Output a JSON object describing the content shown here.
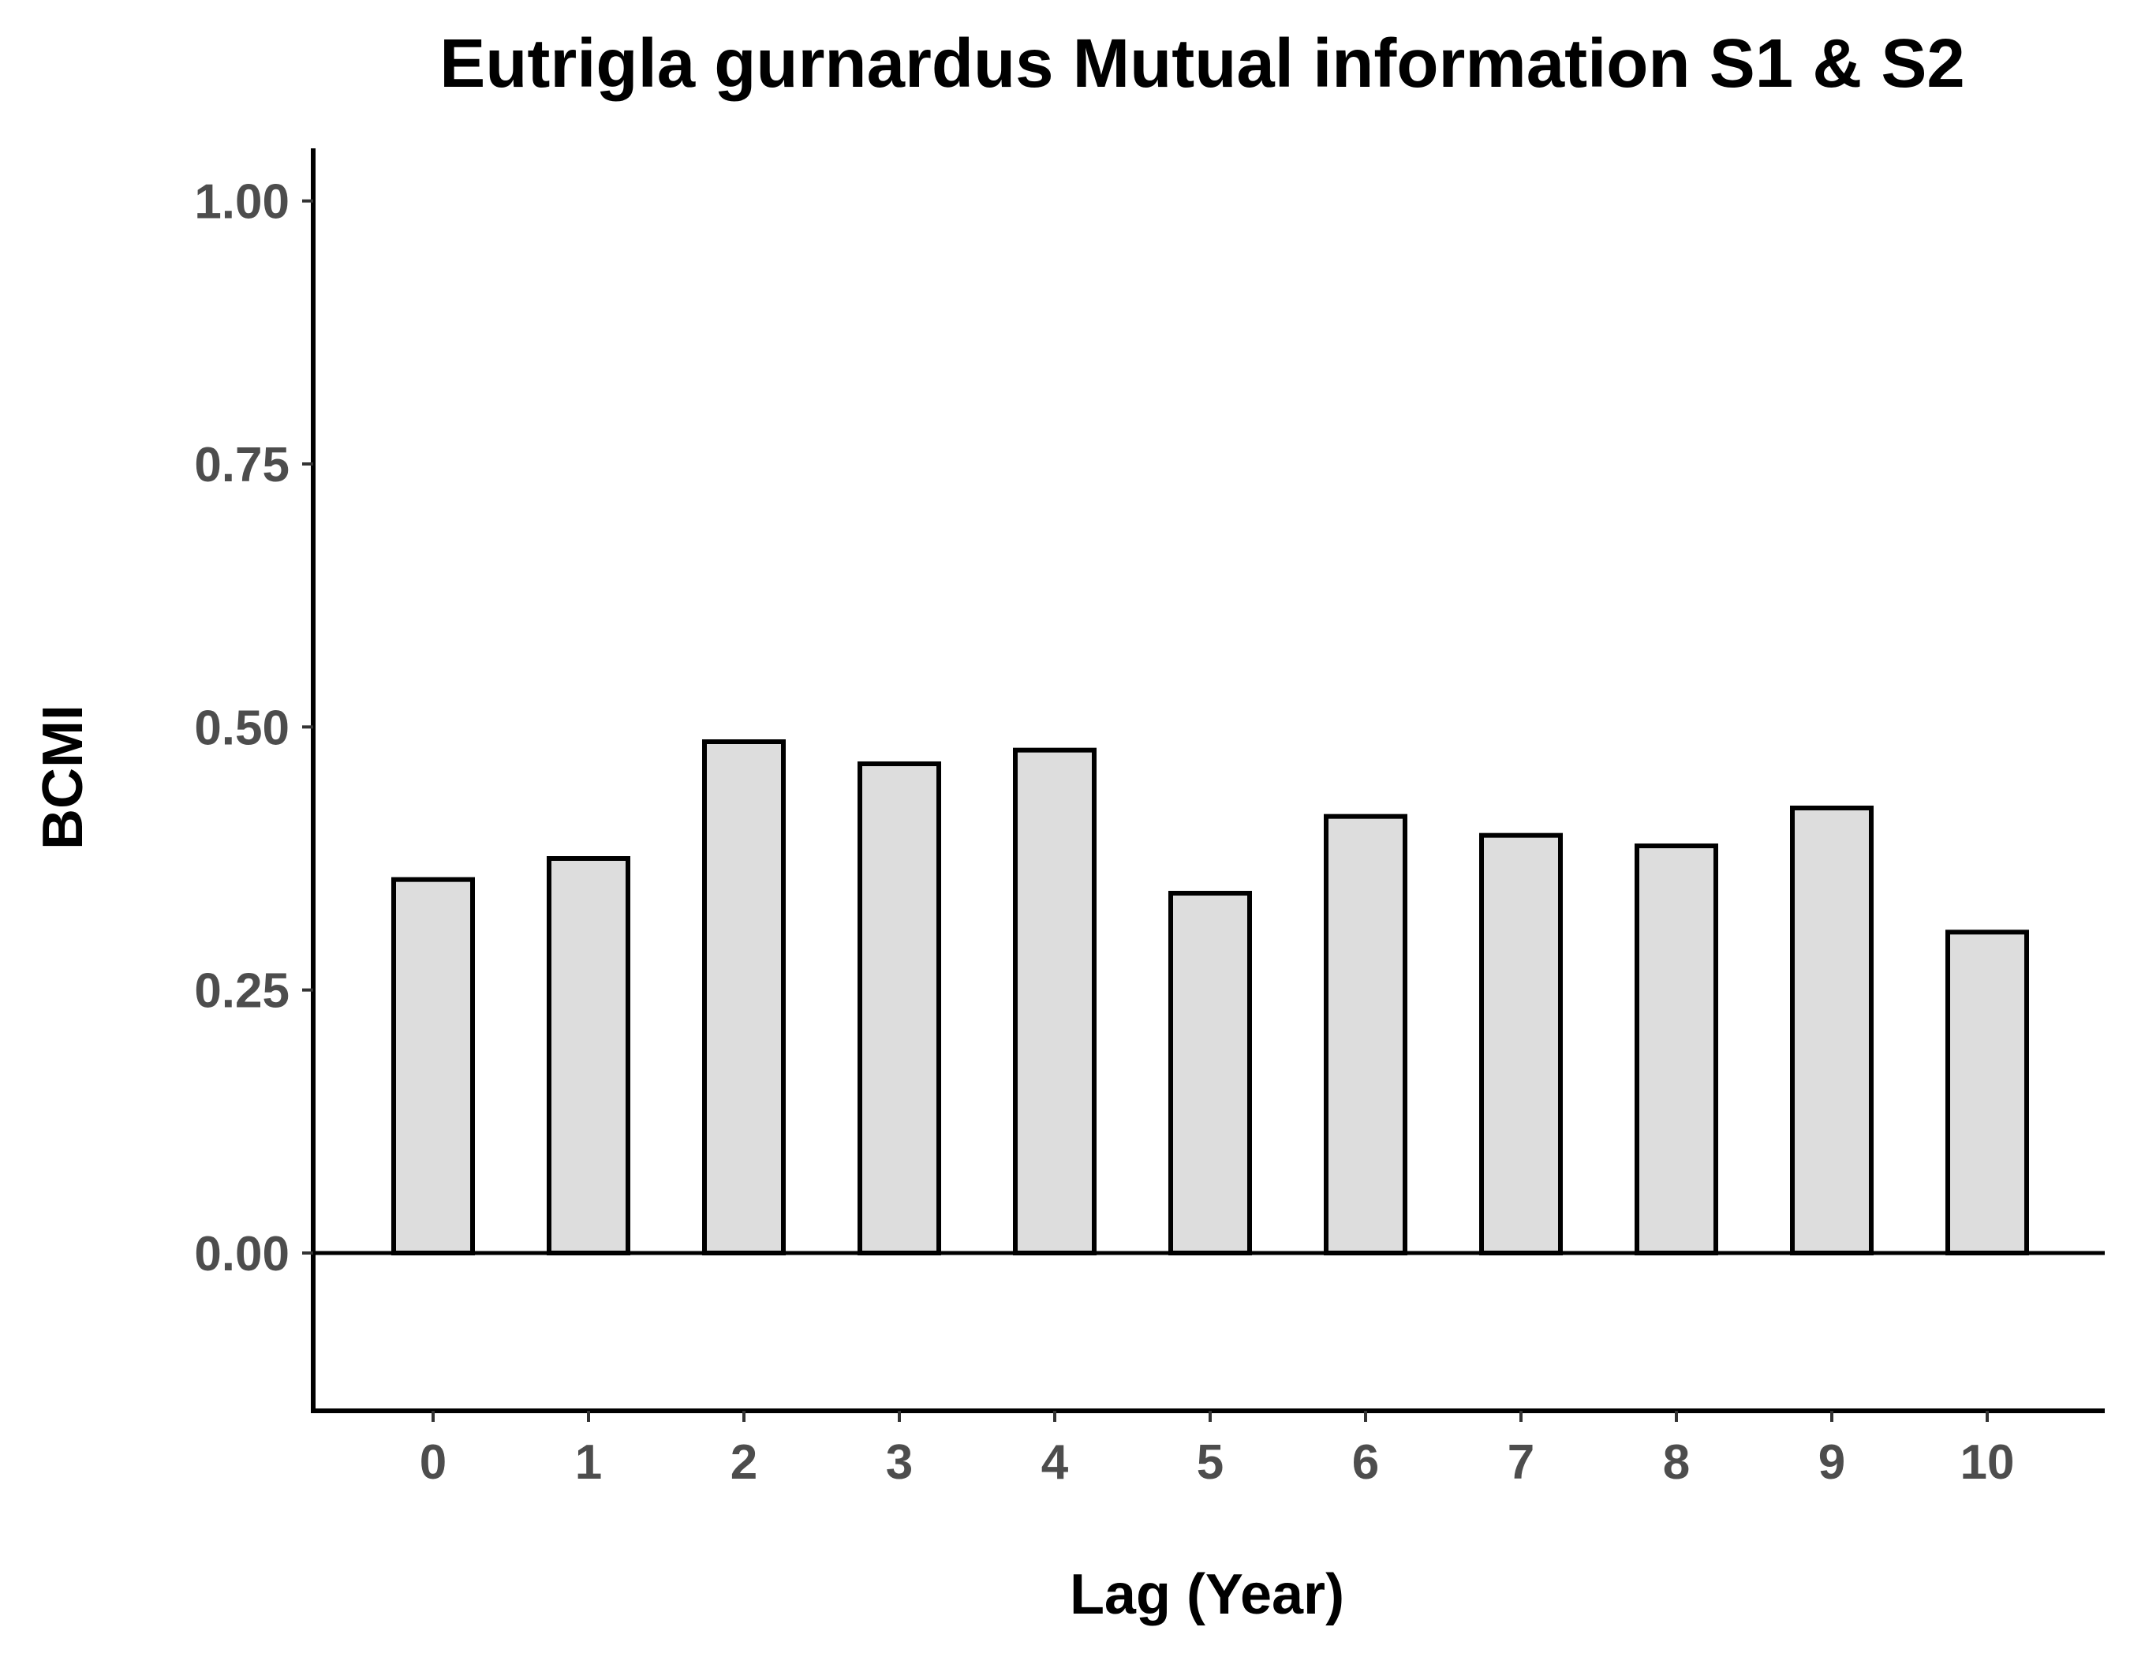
{
  "chart_data": {
    "type": "bar",
    "title": "Eutrigla gurnardus Mutual information S1 & S2",
    "xlabel": "Lag (Year)",
    "ylabel": "BCMI",
    "categories": [
      "0",
      "1",
      "2",
      "3",
      "4",
      "5",
      "6",
      "7",
      "8",
      "9",
      "10"
    ],
    "values": [
      0.355,
      0.375,
      0.486,
      0.465,
      0.478,
      0.342,
      0.415,
      0.397,
      0.387,
      0.423,
      0.305
    ],
    "ylim": [
      -0.15,
      1.05
    ],
    "yticks": [
      "0.00",
      "0.25",
      "0.50",
      "0.75",
      "1.00"
    ],
    "reference_line": 0,
    "bar_fill": "#dddddd",
    "bar_stroke": "#000000",
    "grid": false,
    "legend": "none"
  }
}
